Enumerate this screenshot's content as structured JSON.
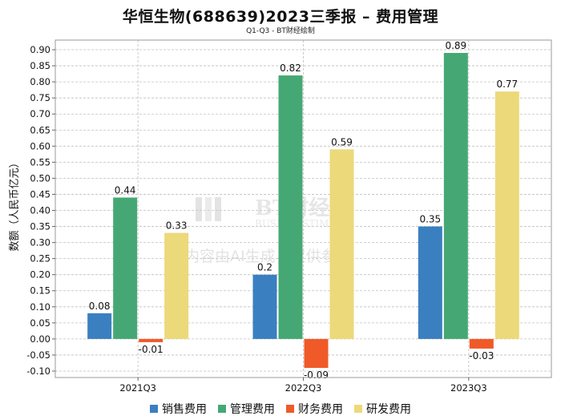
{
  "header": {
    "title": "华恒生物(688639)2023三季报 – 费用管理",
    "subtitle": "Q1-Q3 - BT财经绘制"
  },
  "watermark": {
    "logo_text": "BT财经",
    "logo_subtext": "BUSINESSTIMES",
    "notice": "内容由AI生成，仅供参考"
  },
  "colors": {
    "series": [
      "#3a7fc0",
      "#45a874",
      "#ef5a28",
      "#ecd97a"
    ],
    "grid": "#bfbfbf"
  },
  "chart_data": {
    "type": "bar",
    "title": "华恒生物(688639)2023三季报 – 费用管理",
    "subtitle": "Q1-Q3 - BT财经绘制",
    "xlabel": "",
    "ylabel": "数额（人民币亿元）",
    "ylim": [
      -0.12,
      0.93
    ],
    "yticks": [
      0.9,
      0.85,
      0.8,
      0.75,
      0.7,
      0.65,
      0.6,
      0.55,
      0.5,
      0.45,
      0.4,
      0.35,
      0.3,
      0.25,
      0.2,
      0.15,
      0.1,
      0.05,
      0.0,
      -0.05,
      -0.1
    ],
    "ytick_labels": [
      "0.90",
      "0.85",
      "0.80",
      "0.75",
      "0.70",
      "0.65",
      "0.60",
      "0.55",
      "0.50",
      "0.45",
      "0.40",
      "0.35",
      "0.30",
      "0.25",
      "0.20",
      "0.15",
      "0.10",
      "0.05",
      "0.00",
      "-0.05",
      "-0.10"
    ],
    "categories": [
      "2021Q3",
      "2022Q3",
      "2023Q3"
    ],
    "series": [
      {
        "name": "销售费用",
        "values": [
          0.08,
          0.2,
          0.35
        ],
        "labels": [
          "0.08",
          "0.2",
          "0.35"
        ]
      },
      {
        "name": "管理费用",
        "values": [
          0.44,
          0.82,
          0.89
        ],
        "labels": [
          "0.44",
          "0.82",
          "0.89"
        ]
      },
      {
        "name": "财务费用",
        "values": [
          -0.01,
          -0.09,
          -0.03
        ],
        "labels": [
          "-0.01",
          "-0.09",
          "-0.03"
        ]
      },
      {
        "name": "研发费用",
        "values": [
          0.33,
          0.59,
          0.77
        ],
        "labels": [
          "0.33",
          "0.59",
          "0.77"
        ]
      }
    ],
    "grid": true,
    "legend_position": "bottom-center"
  }
}
